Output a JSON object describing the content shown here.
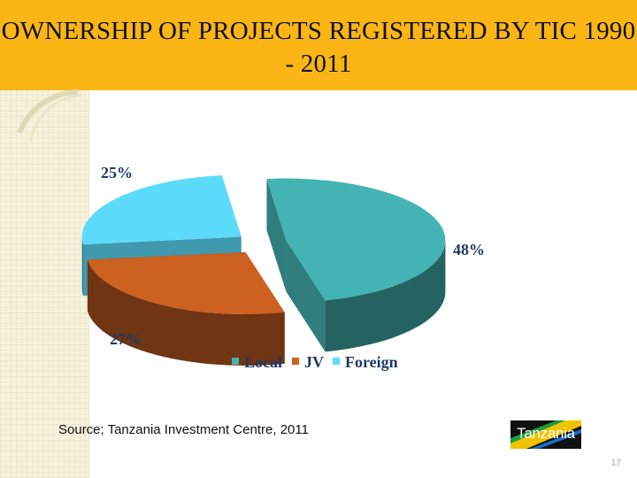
{
  "slide": {
    "title": "OWNERSHIP OF PROJECTS REGISTERED BY TIC 1990 - 2011",
    "source": "Source; Tanzania Investment Centre, 2011",
    "logo_text": "Tanzania",
    "page_number": "17"
  },
  "chart_data": {
    "type": "pie",
    "categories": [
      "Local",
      "JV",
      "Foreign"
    ],
    "values": [
      48,
      27,
      25
    ],
    "labels": [
      "48%",
      "27%",
      "25%"
    ],
    "colors": [
      "#43b3b3",
      "#cc6121",
      "#5ddbfb"
    ],
    "legend_position": "bottom"
  }
}
